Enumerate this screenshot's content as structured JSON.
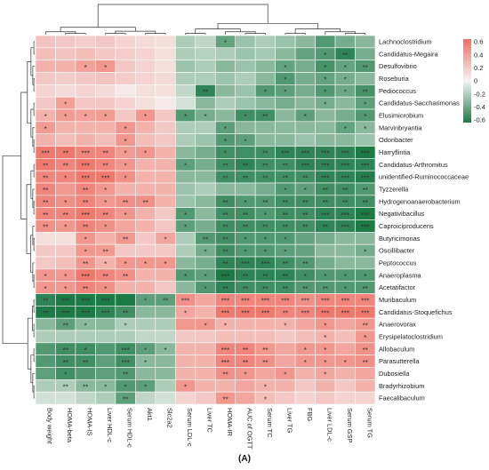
{
  "chart_data": {
    "type": "heatmap",
    "title": "",
    "xlabel": "",
    "ylabel": "",
    "panel_label": "(A)",
    "rows": [
      "Lachnoclostridium",
      "Candidatus-Megaira",
      "Desulfovibrio",
      "Roseburia",
      "Pediococcus",
      "Candidatus-Saccharimonas",
      "Elusimicrobium",
      "Marvinbryantia",
      "Odoribacter",
      "Harryflintia",
      "Candidatus-Arthromitus",
      "unidentified-Ruminococcaceae",
      "Tyzzerella",
      "Hydrogenoanaerobacterium",
      "Negativibacillus",
      "Caproiciproducens",
      "Butyricimonas",
      "Oscillibacter",
      "Peptococcus",
      "Anaeroplasma",
      "Acetatifactor",
      "Muribaculum",
      "Candidatus-Stoquefichus",
      "Anaerovorax",
      "Erysipelatoclostridium",
      "Allobaculum",
      "Parasutterella",
      "Dubosiella",
      "Bradyrhizobium",
      "Faecalibaculum"
    ],
    "columns": [
      "Body weight",
      "HOMA-beta",
      "HOMA-IS",
      "Liver HDL-c",
      "Serum HDL-c",
      "Akt1",
      "Slc2a2",
      "Serum LDL-c",
      "Liver TC",
      "HOMA-IR",
      "AUC of OGTT",
      "Serum TC",
      "Liver TG",
      "FBG",
      "Liver LDL-c",
      "Serum GSP",
      "Serum TG"
    ],
    "values": [
      [
        0.22,
        0.2,
        0.18,
        0.2,
        0.15,
        0.12,
        0.1,
        -0.2,
        -0.15,
        -0.4,
        -0.25,
        -0.2,
        -0.25,
        -0.3,
        -0.45,
        -0.35,
        -0.3
      ],
      [
        0.25,
        0.22,
        0.25,
        0.2,
        0.18,
        0.15,
        0.1,
        -0.2,
        -0.18,
        -0.2,
        -0.25,
        -0.22,
        -0.3,
        -0.4,
        -0.45,
        -0.55,
        -0.35
      ],
      [
        0.3,
        0.3,
        0.38,
        0.42,
        0.2,
        0.15,
        0.1,
        -0.25,
        -0.2,
        -0.3,
        -0.25,
        -0.3,
        -0.4,
        -0.35,
        -0.48,
        -0.4,
        -0.45
      ],
      [
        0.2,
        0.18,
        0.2,
        0.22,
        0.18,
        0.15,
        0.12,
        -0.2,
        -0.2,
        -0.25,
        -0.2,
        -0.3,
        -0.45,
        -0.35,
        -0.4,
        -0.35,
        -0.3
      ],
      [
        0.15,
        0.12,
        0.15,
        0.12,
        0.05,
        0.1,
        0.1,
        -0.15,
        -0.55,
        -0.3,
        -0.25,
        -0.45,
        -0.42,
        -0.35,
        -0.45,
        -0.38,
        -0.48
      ],
      [
        0.2,
        0.38,
        0.2,
        0.2,
        0.15,
        0.1,
        0.05,
        -0.1,
        -0.3,
        -0.2,
        -0.25,
        -0.3,
        -0.35,
        -0.3,
        -0.35,
        -0.3,
        -0.42
      ],
      [
        0.3,
        0.4,
        0.38,
        0.4,
        0.2,
        0.42,
        0.2,
        -0.45,
        -0.35,
        -0.3,
        -0.5,
        -0.5,
        -0.3,
        -0.42,
        -0.3,
        -0.35,
        -0.45
      ],
      [
        0.4,
        0.3,
        0.3,
        0.3,
        0.42,
        0.3,
        0.2,
        -0.2,
        -0.2,
        -0.42,
        -0.3,
        -0.3,
        -0.3,
        -0.3,
        -0.3,
        -0.4,
        -0.3
      ],
      [
        0.3,
        0.25,
        0.3,
        0.25,
        0.42,
        0.25,
        0.2,
        -0.2,
        -0.25,
        -0.45,
        -0.42,
        -0.3,
        -0.3,
        -0.25,
        -0.3,
        -0.3,
        -0.25
      ],
      [
        0.55,
        0.55,
        0.5,
        0.5,
        0.4,
        0.42,
        0.3,
        -0.3,
        -0.35,
        -0.5,
        -0.5,
        -0.5,
        -0.55,
        -0.55,
        -0.55,
        -0.55,
        -0.7
      ],
      [
        0.55,
        0.5,
        0.55,
        0.5,
        0.42,
        0.3,
        0.3,
        -0.42,
        -0.35,
        -0.5,
        -0.55,
        -0.5,
        -0.5,
        -0.55,
        -0.55,
        -0.55,
        -0.55
      ],
      [
        0.5,
        0.5,
        0.55,
        0.55,
        0.45,
        0.3,
        0.3,
        -0.3,
        -0.3,
        -0.5,
        -0.5,
        -0.5,
        -0.5,
        -0.5,
        -0.55,
        -0.55,
        -0.58
      ],
      [
        0.5,
        0.42,
        0.5,
        0.42,
        0.3,
        0.3,
        0.3,
        -0.25,
        -0.2,
        -0.3,
        -0.3,
        -0.35,
        -0.45,
        -0.42,
        -0.5,
        -0.5,
        -0.45
      ],
      [
        0.5,
        0.45,
        0.5,
        0.42,
        0.45,
        0.45,
        0.3,
        -0.25,
        -0.3,
        -0.5,
        -0.45,
        -0.45,
        -0.5,
        -0.5,
        -0.5,
        -0.5,
        -0.5
      ],
      [
        0.5,
        0.5,
        0.55,
        0.5,
        0.42,
        0.3,
        0.2,
        -0.45,
        -0.3,
        -0.5,
        -0.5,
        -0.45,
        -0.5,
        -0.5,
        -0.55,
        -0.55,
        -0.6
      ],
      [
        0.45,
        0.42,
        0.5,
        0.45,
        0.35,
        0.3,
        0.2,
        -0.42,
        -0.35,
        -0.5,
        -0.5,
        -0.5,
        -0.5,
        -0.5,
        -0.55,
        -0.55,
        -0.6
      ],
      [
        0.1,
        0.1,
        0.42,
        0.3,
        0.42,
        0.2,
        0.35,
        -0.2,
        -0.45,
        -0.5,
        -0.45,
        -0.45,
        -0.45,
        -0.4,
        -0.35,
        -0.3,
        -0.3
      ],
      [
        0.2,
        0.2,
        0.42,
        0.4,
        0.2,
        0.2,
        0.2,
        -0.2,
        -0.35,
        -0.5,
        -0.45,
        -0.45,
        -0.42,
        -0.4,
        -0.3,
        -0.3,
        -0.35
      ],
      [
        0.2,
        0.25,
        0.42,
        0.3,
        0.42,
        0.42,
        0.42,
        -0.3,
        -0.35,
        -0.55,
        -0.55,
        -0.55,
        -0.5,
        -0.45,
        -0.35,
        -0.3,
        -0.3
      ],
      [
        0.42,
        0.42,
        0.55,
        0.5,
        0.45,
        0.3,
        0.3,
        -0.45,
        -0.42,
        -0.6,
        -0.55,
        -0.55,
        -0.55,
        -0.5,
        -0.45,
        -0.45,
        -0.45
      ],
      [
        0.42,
        0.42,
        0.5,
        0.45,
        0.3,
        0.3,
        0.2,
        -0.3,
        -0.45,
        -0.55,
        -0.5,
        -0.5,
        -0.5,
        -0.45,
        -0.45,
        -0.45,
        -0.45
      ],
      [
        -0.55,
        -0.6,
        -0.65,
        -0.6,
        -0.7,
        -0.42,
        -0.42,
        0.45,
        0.35,
        0.5,
        0.5,
        0.5,
        0.5,
        0.45,
        0.5,
        0.5,
        0.5
      ],
      [
        -0.6,
        -0.6,
        -0.6,
        -0.55,
        -0.5,
        -0.3,
        -0.3,
        0.35,
        0.3,
        0.55,
        0.55,
        0.55,
        0.5,
        0.5,
        0.55,
        0.55,
        0.55
      ],
      [
        -0.3,
        -0.42,
        -0.3,
        -0.3,
        -0.2,
        -0.2,
        -0.2,
        0.42,
        0.42,
        0.3,
        0.3,
        0.3,
        0.3,
        0.35,
        0.42,
        0.35,
        0.42
      ],
      [
        -0.2,
        -0.2,
        -0.2,
        -0.2,
        -0.2,
        -0.15,
        -0.15,
        0.2,
        0.2,
        0.25,
        0.25,
        0.25,
        0.2,
        0.25,
        0.3,
        0.25,
        0.42
      ],
      [
        -0.45,
        -0.5,
        -0.5,
        -0.45,
        -0.5,
        -0.42,
        -0.3,
        0.3,
        0.3,
        0.5,
        0.5,
        0.42,
        0.35,
        0.42,
        0.42,
        0.35,
        0.45
      ],
      [
        -0.45,
        -0.5,
        -0.5,
        -0.42,
        -0.5,
        -0.3,
        -0.3,
        0.3,
        0.3,
        0.5,
        0.5,
        0.45,
        0.35,
        0.42,
        0.42,
        0.42,
        0.45
      ],
      [
        -0.42,
        -0.5,
        -0.45,
        -0.42,
        -0.45,
        -0.3,
        -0.3,
        0.3,
        0.3,
        0.45,
        0.42,
        0.35,
        0.42,
        0.3,
        0.35,
        0.3,
        0.35
      ],
      [
        -0.2,
        -0.2,
        -0.3,
        -0.3,
        -0.45,
        -0.42,
        -0.2,
        0.42,
        0.3,
        0.3,
        0.35,
        0.3,
        0.3,
        0.2,
        0.3,
        0.2,
        0.3
      ],
      [
        -0.1,
        -0.1,
        -0.15,
        -0.2,
        -0.42,
        -0.15,
        -0.1,
        0.15,
        0.2,
        0.42,
        0.35,
        0.25,
        0.2,
        0.15,
        0.2,
        0.15,
        0.15
      ]
    ],
    "stars": [
      [
        "",
        "",
        "",
        "",
        "",
        "",
        "",
        "",
        "",
        "*",
        "",
        "",
        "",
        "",
        "",
        "",
        ""
      ],
      [
        "",
        "",
        "",
        "",
        "",
        "",
        "",
        "",
        "",
        "",
        "",
        "",
        "",
        "",
        "*",
        "**",
        ""
      ],
      [
        "",
        "",
        "*",
        "*",
        "",
        "",
        "",
        "",
        "",
        "",
        "",
        "",
        "*",
        "",
        "*",
        "*",
        "**"
      ],
      [
        "",
        "",
        "",
        "",
        "",
        "",
        "",
        "",
        "",
        "",
        "",
        "",
        "*",
        "",
        "*",
        "*",
        ""
      ],
      [
        "",
        "",
        "",
        "",
        "",
        "",
        "",
        "",
        "**",
        "",
        "",
        "*",
        "*",
        "",
        "*",
        "*",
        "**"
      ],
      [
        "",
        "*",
        "",
        "",
        "",
        "",
        "",
        "",
        "",
        "",
        "",
        "",
        "",
        "",
        "*",
        "",
        "*"
      ],
      [
        "*",
        "*",
        "*",
        "*",
        "",
        "*",
        "",
        "*",
        "*",
        "",
        "*",
        "**",
        "",
        "*",
        "",
        "",
        "*"
      ],
      [
        "*",
        "",
        "",
        "",
        "*",
        "",
        "",
        "",
        "",
        "*",
        "",
        "",
        "",
        "",
        "",
        "*",
        "*"
      ],
      [
        "",
        "",
        "",
        "",
        "*",
        "",
        "",
        "",
        "",
        "*",
        "*",
        "",
        "",
        "",
        "",
        "",
        ""
      ],
      [
        "***",
        "**",
        "***",
        "**",
        "*",
        "*",
        "",
        "",
        "",
        "*",
        "",
        "**",
        "***",
        "***",
        "***",
        "***",
        "***"
      ],
      [
        "**",
        "**",
        "***",
        "**",
        "*",
        "",
        "",
        "*",
        "",
        "**",
        "**",
        "**",
        "**",
        "***",
        "***",
        "***",
        "***"
      ],
      [
        "**",
        "*",
        "***",
        "***",
        "*",
        "",
        "",
        "",
        "",
        "**",
        "**",
        "**",
        "**",
        "**",
        "***",
        "***",
        "***"
      ],
      [
        "**",
        "",
        "**",
        "*",
        "",
        "",
        "",
        "",
        "",
        "",
        "",
        "",
        "*",
        "*",
        "**",
        "**",
        "**"
      ],
      [
        "**",
        "*",
        "**",
        "*",
        "**",
        "**",
        "",
        "",
        "",
        "**",
        "*",
        "**",
        "**",
        "**",
        "**",
        "**",
        "**"
      ],
      [
        "**",
        "**",
        "***",
        "**",
        "*",
        "",
        "",
        "*",
        "",
        "**",
        "**",
        "*",
        "**",
        "**",
        "***",
        "***",
        "***"
      ],
      [
        "**",
        "*",
        "**",
        "*",
        "",
        "",
        "",
        "*",
        "",
        "**",
        "**",
        "**",
        "**",
        "**",
        "**",
        "***",
        "***"
      ],
      [
        "",
        "",
        "*",
        "",
        "**",
        "",
        "*",
        "",
        "**",
        "**",
        "*",
        "*",
        "*",
        "",
        "",
        "",
        ""
      ],
      [
        "",
        "",
        "*",
        "**",
        "",
        "",
        "",
        "",
        "*",
        "**",
        "*",
        "*",
        "*",
        "",
        "",
        "",
        "*"
      ],
      [
        "",
        "",
        "**",
        "*",
        "*",
        "*",
        "*",
        "",
        "",
        "**",
        "***",
        "***",
        "**",
        "**",
        "",
        "",
        ""
      ],
      [
        "*",
        "*",
        "***",
        "**",
        "**",
        "",
        "",
        "*",
        "*",
        "***",
        "**",
        "**",
        "**",
        "*",
        "*",
        "*",
        "*"
      ],
      [
        "*",
        "*",
        "**",
        "*",
        "",
        "",
        "",
        "",
        "*",
        "**",
        "**",
        "**",
        "**",
        "**",
        "**",
        "*",
        "**"
      ],
      [
        "**",
        "***",
        "***",
        "***",
        "",
        "*",
        "**",
        "***",
        "",
        "***",
        "***",
        "***",
        "***",
        "***",
        "***",
        "***",
        "***"
      ],
      [
        "**",
        "***",
        "***",
        "***",
        "**",
        "",
        "",
        "*",
        "",
        "***",
        "***",
        "***",
        "**",
        "***",
        "***",
        "***",
        "***"
      ],
      [
        "",
        "**",
        "*",
        "",
        "*",
        "",
        "",
        "",
        "*",
        "*",
        "",
        "",
        "*",
        "",
        "*",
        "",
        "**"
      ],
      [
        "",
        "",
        "",
        "",
        "",
        "",
        "",
        "",
        "",
        "",
        "",
        "",
        "",
        "",
        "*",
        "",
        "*"
      ],
      [
        "",
        "**",
        "*",
        "",
        "***",
        "*",
        "*",
        "",
        "",
        "***",
        "**",
        "**",
        "",
        "*",
        "*",
        "",
        "**"
      ],
      [
        "",
        "**",
        "**",
        "",
        "***",
        "*",
        "",
        "",
        "",
        "***",
        "**",
        "**",
        "",
        "*",
        "*",
        "*",
        "**"
      ],
      [
        "",
        "*",
        "",
        "",
        "**",
        "",
        "",
        "",
        "",
        "**",
        "*",
        "",
        "*",
        "",
        "*",
        "",
        ""
      ],
      [
        "",
        "**",
        "**",
        "*",
        "*",
        "*",
        "",
        "*",
        "",
        "",
        "",
        "*",
        "",
        "",
        "",
        "",
        ""
      ],
      [
        "",
        "",
        "",
        "",
        "**",
        "",
        "",
        "",
        "",
        "**",
        "",
        "*",
        "",
        "",
        "",
        "",
        ""
      ]
    ],
    "color_scale": {
      "min": -0.6,
      "max": 0.6,
      "ticks": [
        "0.6",
        "0.4",
        "0.2",
        "0",
        "-0.2",
        "-0.4",
        "-0.6"
      ],
      "low_color": "#1c7a45",
      "mid_color": "#f5f5f5",
      "high_color": "#f06e62"
    },
    "row_clusters": [
      21,
      30
    ],
    "col_clusters": [
      7,
      17
    ],
    "grid": true,
    "legend_placement": "top-right"
  }
}
